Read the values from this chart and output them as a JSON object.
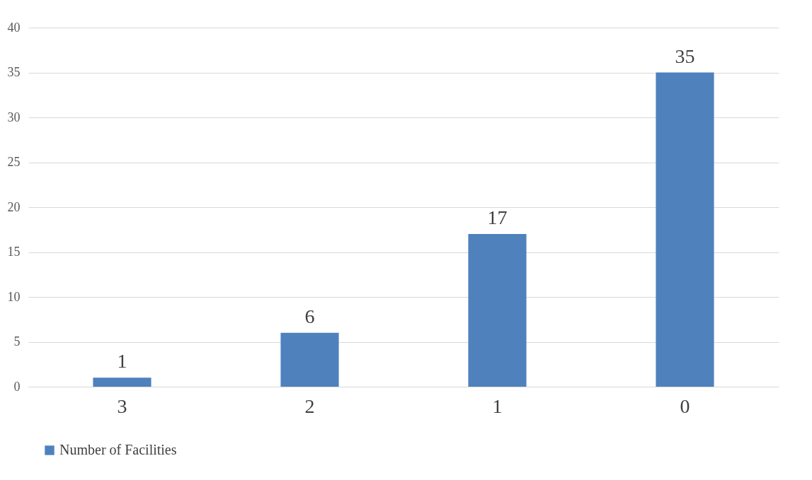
{
  "chart_data": {
    "type": "bar",
    "categories": [
      "3",
      "2",
      "1",
      "0"
    ],
    "series": [
      {
        "name": "Number of Facilities",
        "color": "#4f81bd",
        "values": [
          1,
          6,
          17,
          35
        ]
      }
    ],
    "ylim": [
      0,
      40
    ],
    "yticks": [
      0,
      5,
      10,
      15,
      20,
      25,
      30,
      35,
      40
    ],
    "grid": "y",
    "legend": "bottom",
    "data_labels": true
  }
}
